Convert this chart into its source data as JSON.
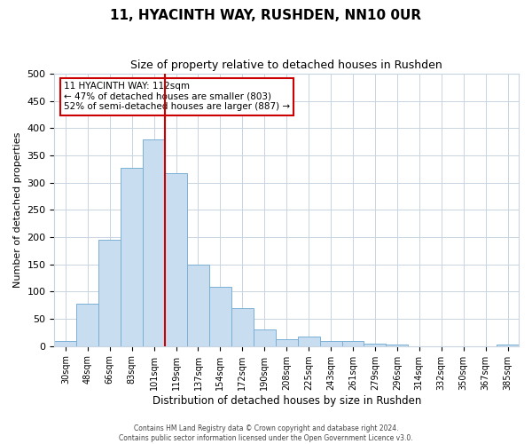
{
  "title": "11, HYACINTH WAY, RUSHDEN, NN10 0UR",
  "subtitle": "Size of property relative to detached houses in Rushden",
  "xlabel": "Distribution of detached houses by size in Rushden",
  "ylabel": "Number of detached properties",
  "bar_labels": [
    "30sqm",
    "48sqm",
    "66sqm",
    "83sqm",
    "101sqm",
    "119sqm",
    "137sqm",
    "154sqm",
    "172sqm",
    "190sqm",
    "208sqm",
    "225sqm",
    "243sqm",
    "261sqm",
    "279sqm",
    "296sqm",
    "314sqm",
    "332sqm",
    "350sqm",
    "367sqm",
    "385sqm"
  ],
  "bar_values": [
    10,
    78,
    196,
    328,
    380,
    318,
    150,
    108,
    70,
    30,
    12,
    18,
    10,
    10,
    5,
    2,
    0,
    0,
    0,
    0,
    2
  ],
  "bar_color": "#c8ddf0",
  "bar_edge_color": "#7ab0d4",
  "vline_x_index": 4.5,
  "vline_color": "#cc0000",
  "ylim": [
    0,
    500
  ],
  "yticks": [
    0,
    50,
    100,
    150,
    200,
    250,
    300,
    350,
    400,
    450,
    500
  ],
  "annotation_line1": "11 HYACINTH WAY: 112sqm",
  "annotation_line2": "← 47% of detached houses are smaller (803)",
  "annotation_line3": "52% of semi-detached houses are larger (887) →",
  "annotation_box_color": "#ffffff",
  "annotation_box_edge": "#cc0000",
  "footer_line1": "Contains HM Land Registry data © Crown copyright and database right 2024.",
  "footer_line2": "Contains public sector information licensed under the Open Government Licence v3.0.",
  "bg_color": "#ffffff",
  "grid_color": "#c8d4e0",
  "title_fontsize": 11,
  "subtitle_fontsize": 9,
  "footer_fontsize": 5.5
}
